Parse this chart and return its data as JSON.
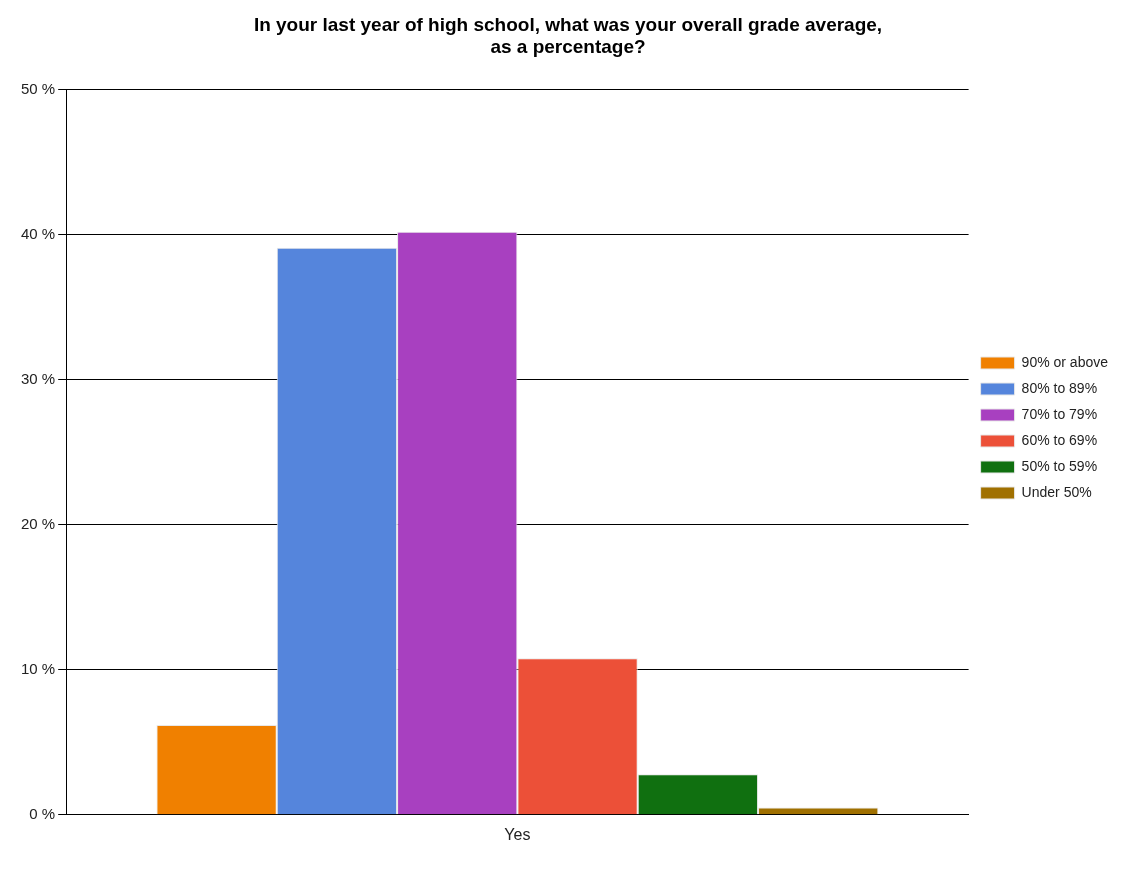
{
  "chart_data": {
    "type": "bar",
    "title": "In your last year of high school, what was your overall grade average,\nas a percentage?",
    "categories": [
      "Yes"
    ],
    "series": [
      {
        "name": "90% or above",
        "color": "#f08000",
        "values": [
          6.2
        ]
      },
      {
        "name": "80% to 89%",
        "color": "#5585dc",
        "values": [
          39.1
        ]
      },
      {
        "name": "70% to 79%",
        "color": "#a840c0",
        "values": [
          40.2
        ]
      },
      {
        "name": "60% to 69%",
        "color": "#ec5038",
        "values": [
          10.8
        ]
      },
      {
        "name": "50% to 59%",
        "color": "#107010",
        "values": [
          2.8
        ]
      },
      {
        "name": "Under 50%",
        "color": "#a07000",
        "values": [
          0.5
        ]
      }
    ],
    "ylim": [
      0,
      50
    ],
    "yticks": [
      {
        "value": 0,
        "label": "0 %"
      },
      {
        "value": 10,
        "label": "10 %"
      },
      {
        "value": 20,
        "label": "20 %"
      },
      {
        "value": 30,
        "label": "30 %"
      },
      {
        "value": 40,
        "label": "40 %"
      },
      {
        "value": 50,
        "label": "50 %"
      }
    ],
    "grid": "y",
    "legend": "right"
  }
}
